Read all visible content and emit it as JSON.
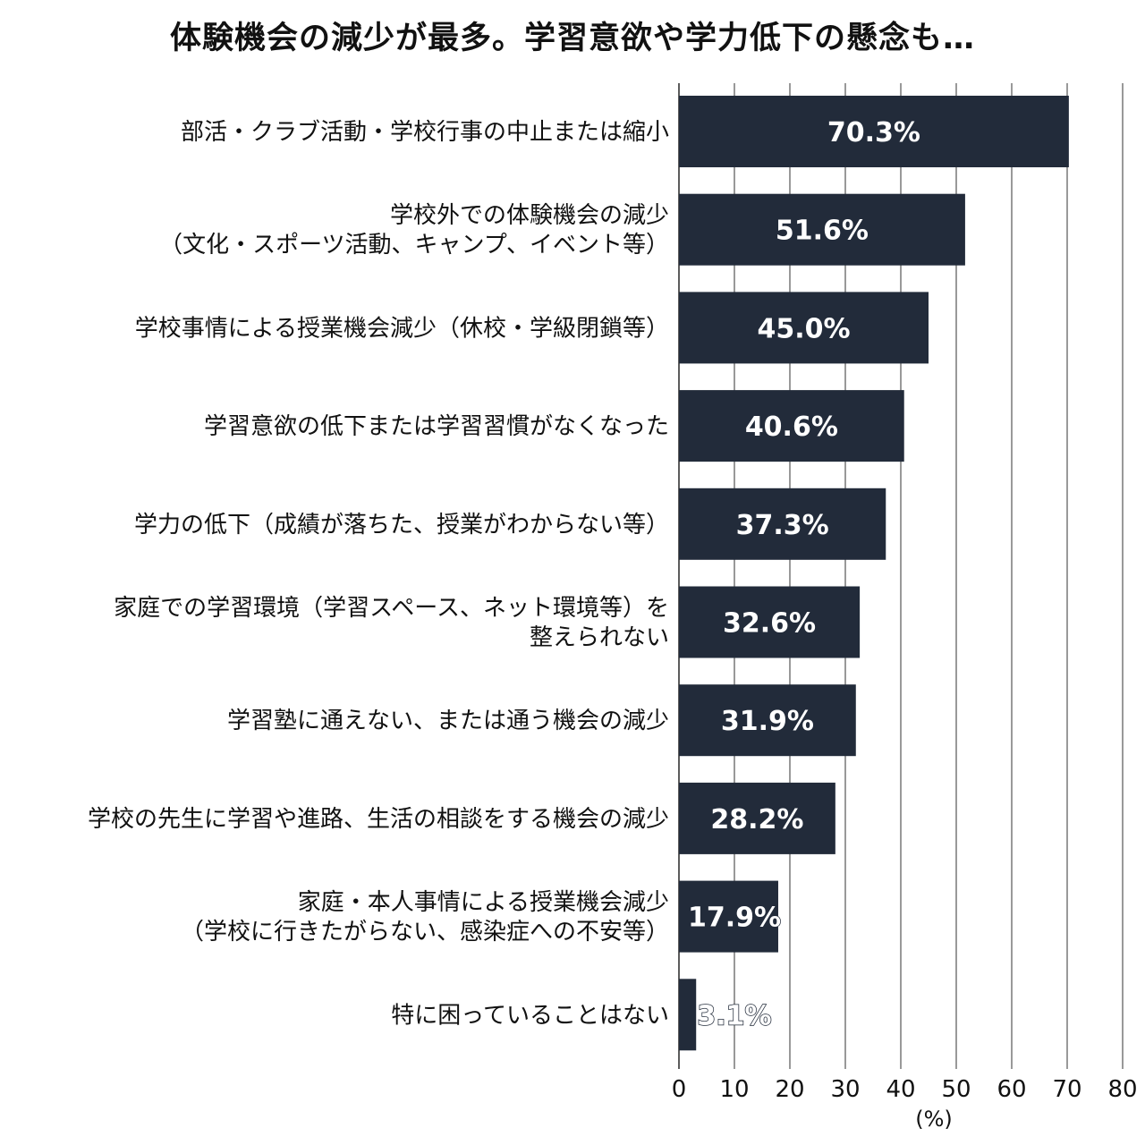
{
  "chart_data": {
    "type": "bar",
    "orientation": "horizontal",
    "title": "体験機会の減少が最多。学習意欲や学力低下の懸念も…",
    "categories": [
      [
        "部活・クラブ活動・学校行事の中止または縮小"
      ],
      [
        "学校外での体験機会の減少",
        "（文化・スポーツ活動、キャンプ、イベント等）"
      ],
      [
        "学校事情による授業機会減少（休校・学級閉鎖等）"
      ],
      [
        "学習意欲の低下または学習習慣がなくなった"
      ],
      [
        "学力の低下（成績が落ちた、授業がわからない等）"
      ],
      [
        "家庭での学習環境（学習スペース、ネット環境等）を",
        "整えられない"
      ],
      [
        "学習塾に通えない、または通う機会の減少"
      ],
      [
        "学校の先生に学習や進路、生活の相談をする機会の減少"
      ],
      [
        "家庭・本人事情による授業機会減少",
        "（学校に行きたがらない、感染症への不安等）"
      ],
      [
        "特に困っていることはない"
      ]
    ],
    "values": [
      70.3,
      51.6,
      45.0,
      40.6,
      37.3,
      32.6,
      31.9,
      28.2,
      17.9,
      3.1
    ],
    "value_labels": [
      "70.3%",
      "51.6%",
      "45.0%",
      "40.6%",
      "37.3%",
      "32.6%",
      "31.9%",
      "28.2%",
      "17.9%",
      "3.1%"
    ],
    "xlim": [
      0,
      80
    ],
    "xticks": [
      "0",
      "10",
      "20",
      "30",
      "40",
      "50",
      "60",
      "70",
      "80"
    ],
    "xlabel": "(%)",
    "grid": "vertical",
    "bar_color": "#222b3a",
    "value_label_color": "#ffffff"
  }
}
